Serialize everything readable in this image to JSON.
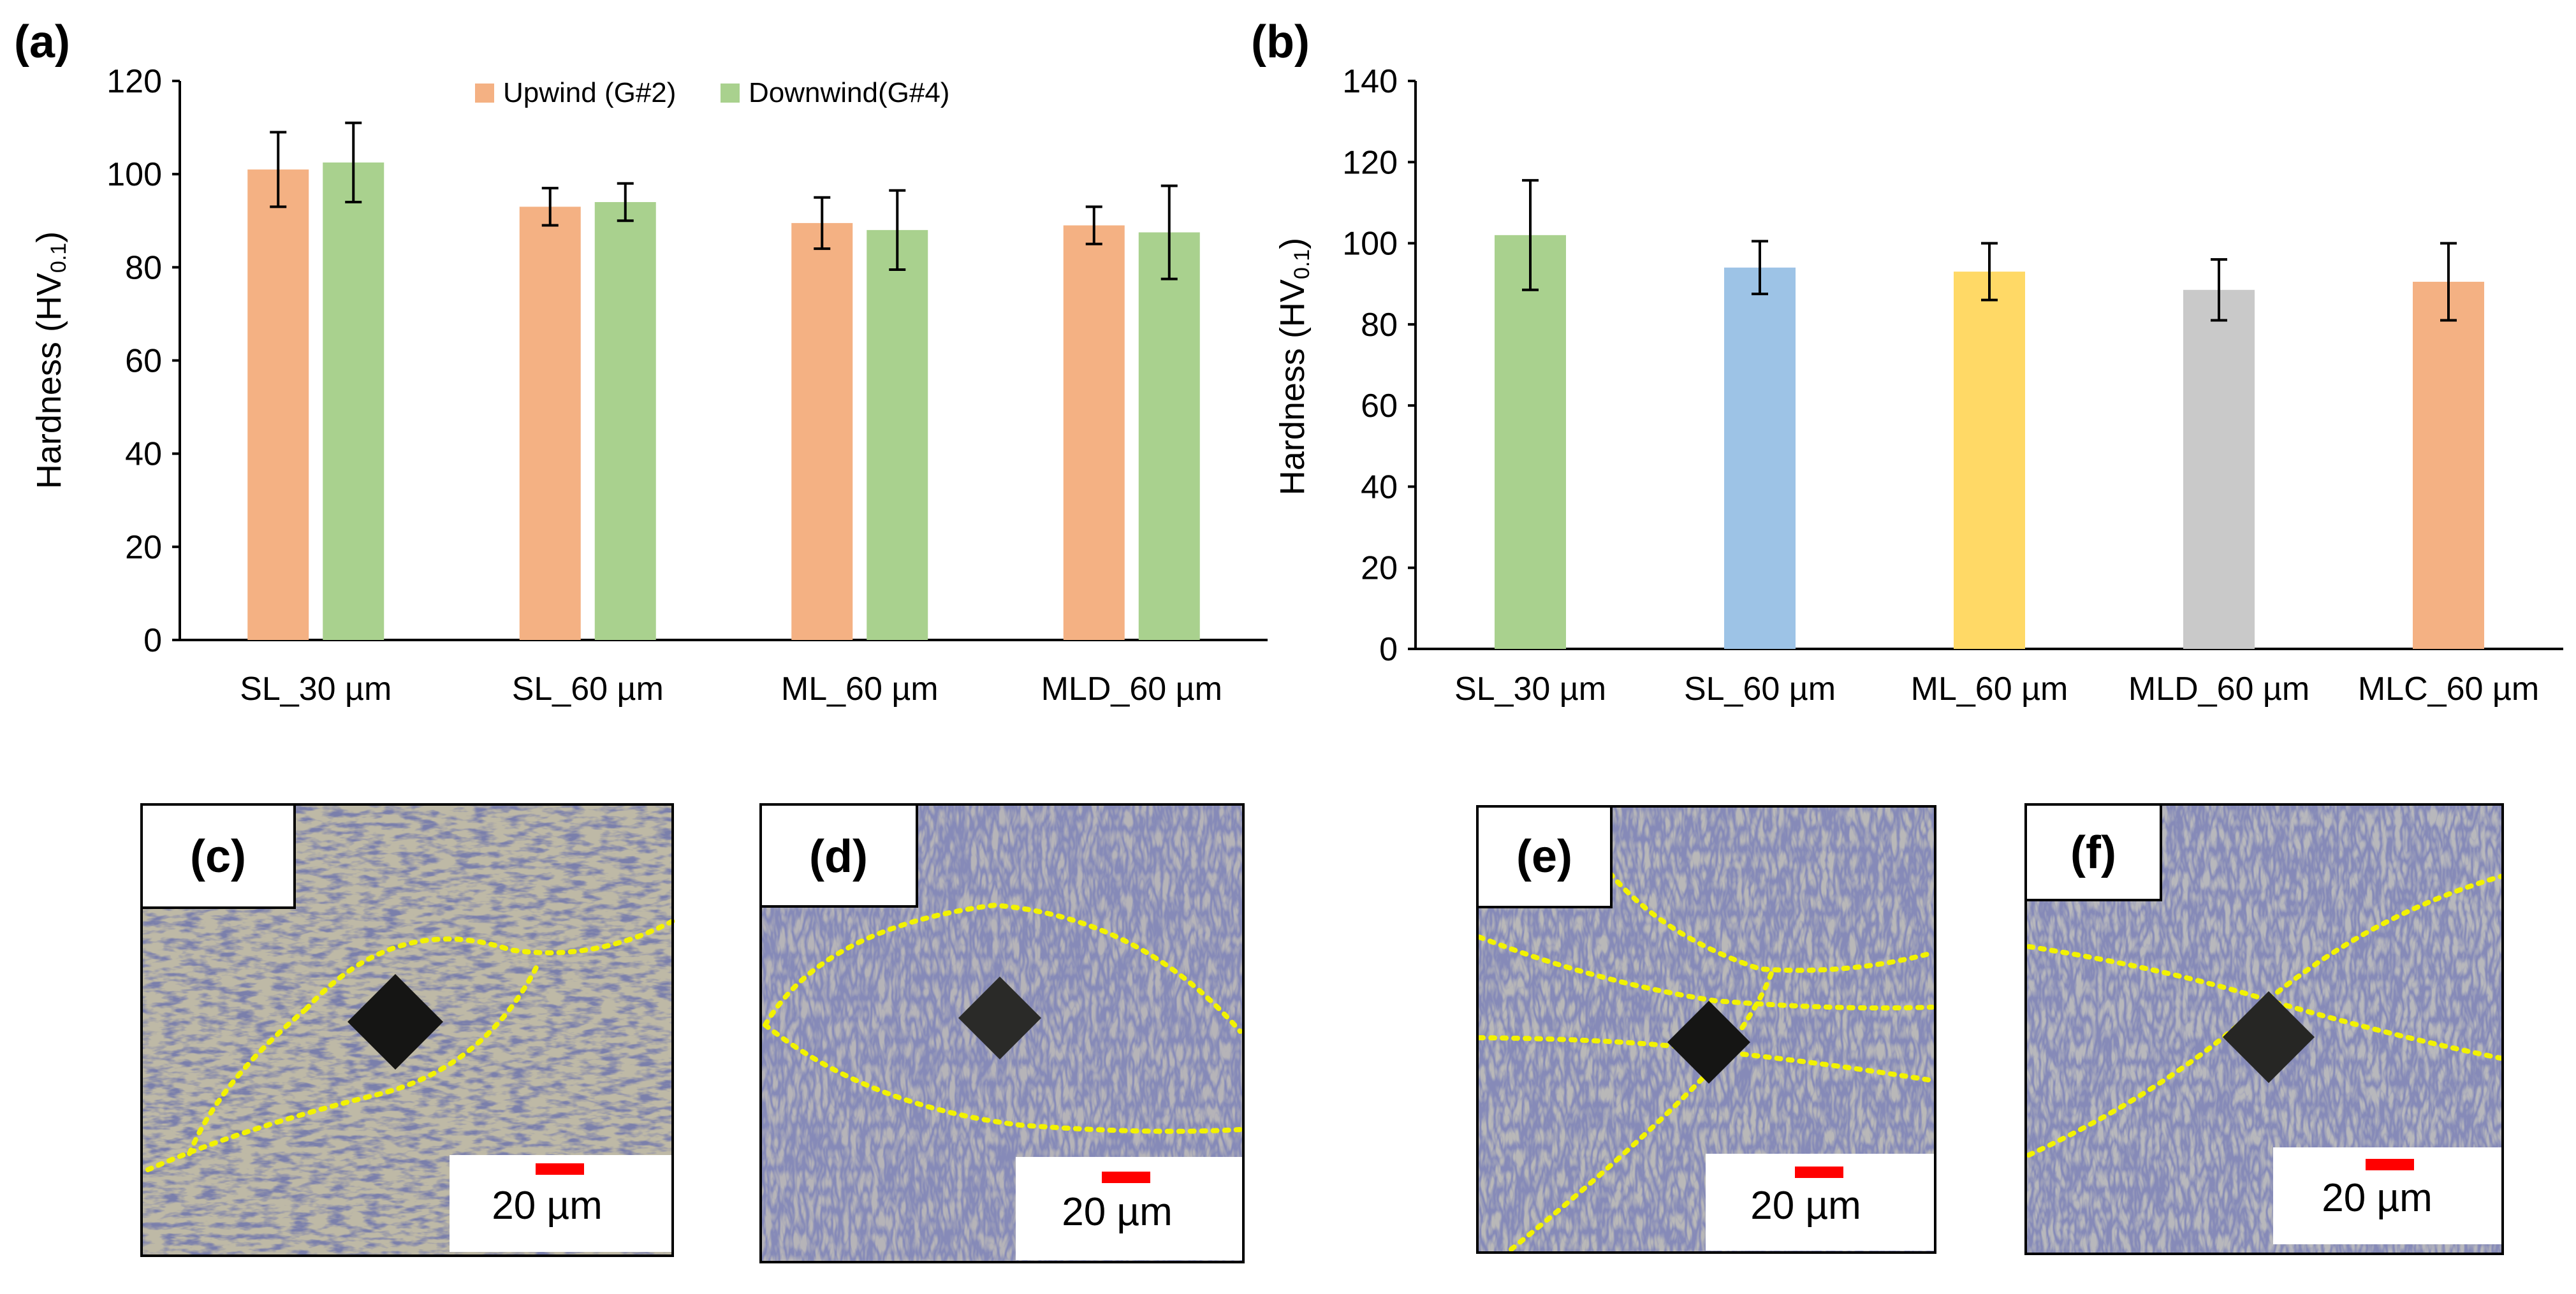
{
  "chart_data": [
    {
      "panel": "(a)",
      "type": "bar",
      "ylabel": "Hardness (HV0.1)",
      "ylabel_main": "Hardness (HV",
      "ylabel_sub": "0.1",
      "ylabel_close": ")",
      "ylim": [
        0,
        120
      ],
      "yticks": [
        0,
        20,
        40,
        60,
        80,
        100,
        120
      ],
      "categories": [
        "SL_30 µm",
        "SL_60 µm",
        "ML_60 µm",
        "MLD_60 µm"
      ],
      "legend_position": "top-center",
      "series": [
        {
          "name": "Upwind (G#2)",
          "color": "#F4B183",
          "values": [
            101,
            93,
            89.5,
            89
          ],
          "errors": [
            8,
            4,
            5.5,
            4
          ]
        },
        {
          "name": "Downwind(G#4)",
          "color": "#A9D18E",
          "values": [
            102.5,
            94,
            88,
            87.5
          ],
          "errors": [
            8.5,
            4,
            8.5,
            10
          ]
        }
      ]
    },
    {
      "panel": "(b)",
      "type": "bar",
      "ylabel": "Hardness (HV0.1)",
      "ylabel_main": "Hardness (HV",
      "ylabel_sub": "0.1",
      "ylabel_close": ")",
      "ylim": [
        0,
        140
      ],
      "yticks": [
        0,
        20,
        40,
        60,
        80,
        100,
        120,
        140
      ],
      "categories": [
        "SL_30 µm",
        "SL_60 µm",
        "ML_60 µm",
        "MLD_60 µm",
        "MLC_60 µm"
      ],
      "values": [
        102,
        94,
        93,
        88.5,
        90.5
      ],
      "errors": [
        13.5,
        6.5,
        7,
        7.5,
        9.5
      ],
      "colors": [
        "#A9D18E",
        "#9DC3E6",
        "#FFD966",
        "#C9C9C9",
        "#F4B183"
      ]
    }
  ],
  "micrographs": [
    {
      "tag": "(c)",
      "scale_label": "20 µm"
    },
    {
      "tag": "(d)",
      "scale_label": "20 µm"
    },
    {
      "tag": "(e)",
      "scale_label": "20 µm"
    },
    {
      "tag": "(f)",
      "scale_label": "20 µm"
    }
  ],
  "colors": {
    "scale_bar": "#FF0000",
    "boundary_line": "#F2F200"
  }
}
